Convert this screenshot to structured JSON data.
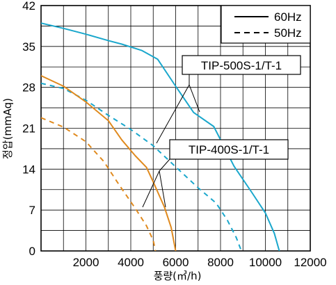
{
  "chart_data": {
    "type": "line",
    "xlabel": "풍량(㎥/h)",
    "ylabel": "정압(mmAq)",
    "xlim": [
      0,
      12000
    ],
    "ylim": [
      0,
      42
    ],
    "x_ticks": [
      "2000",
      "4000",
      "6000",
      "8000",
      "10000",
      "12000"
    ],
    "y_ticks": [
      "0",
      "7",
      "14",
      "21",
      "28",
      "35",
      "42"
    ],
    "grid": true,
    "legend": {
      "position": "top-right",
      "entries": [
        {
          "label": "60Hz",
          "style": "solid"
        },
        {
          "label": "50Hz",
          "style": "dashed"
        }
      ]
    },
    "annotations": [
      {
        "text": "TIP-500S-1/T-1",
        "points_to": "cyan curves"
      },
      {
        "text": "TIP-400S-1/T-1",
        "points_to": "orange curves"
      }
    ],
    "series": [
      {
        "model": "TIP-500S-1/T-1",
        "freq": "60Hz",
        "color": "#1aa7cc",
        "dash": false,
        "x": [
          0,
          1000,
          2000,
          3000,
          3600,
          4500,
          5200,
          6000,
          6800,
          7700,
          8600,
          9400,
          10000,
          10400,
          10620
        ],
        "y": [
          39,
          38.1,
          37.1,
          36,
          35.4,
          34.3,
          32.8,
          28.2,
          23.7,
          21.3,
          14.5,
          10,
          6.5,
          3,
          0
        ]
      },
      {
        "model": "TIP-500S-1/T-1",
        "freq": "50Hz",
        "color": "#1aa7cc",
        "dash": true,
        "x": [
          0,
          1000,
          2000,
          3000,
          4000,
          5000,
          6000,
          7000,
          7800,
          8300,
          8700,
          8930
        ],
        "y": [
          28.7,
          27.8,
          25.8,
          23.2,
          20.8,
          18,
          14.4,
          10.8,
          8.2,
          5.3,
          2.3,
          0
        ]
      },
      {
        "model": "TIP-400S-1/T-1",
        "freq": "60Hz",
        "color": "#e08a1e",
        "dash": false,
        "x": [
          0,
          1000,
          2000,
          3000,
          3600,
          4200,
          4700,
          5000,
          5500,
          5800,
          6000
        ],
        "y": [
          30,
          28.2,
          25.5,
          22.3,
          19,
          16.3,
          14.3,
          11.8,
          7.5,
          4,
          0
        ]
      },
      {
        "model": "TIP-400S-1/T-1",
        "freq": "50Hz",
        "color": "#e08a1e",
        "dash": true,
        "x": [
          0,
          1000,
          2000,
          2800,
          3500,
          4200,
          4700,
          5000,
          5100
        ],
        "y": [
          22.8,
          21.2,
          18.7,
          15.3,
          11.2,
          7.3,
          4.3,
          1.8,
          0
        ]
      }
    ]
  }
}
